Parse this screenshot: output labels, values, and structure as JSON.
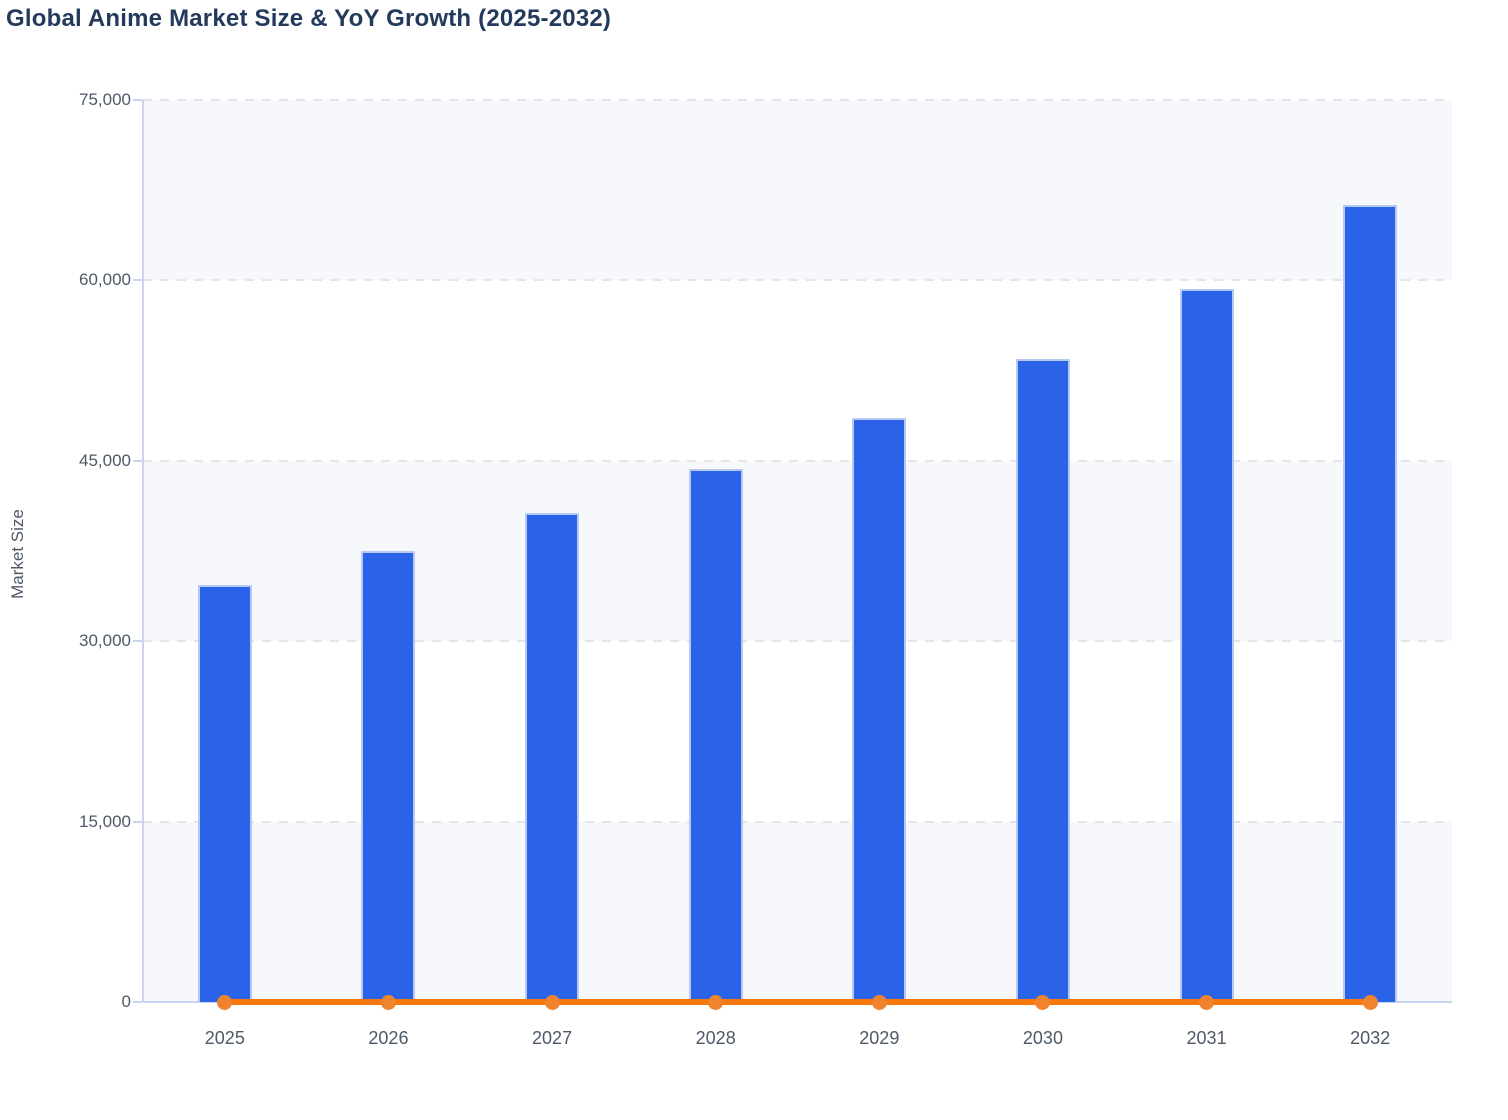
{
  "title": "Global Anime Market Size & YoY Growth (2025-2032)",
  "colors": {
    "title_text": "#243a5c",
    "tick_label": "#4e5968",
    "bar_fill": "#2a63e8",
    "bar_border": "#b7c8f3",
    "growth_line": "#f8780e",
    "growth_marker": "#f0832d",
    "axis_line": "#cad4f2",
    "gridline": "#e4e5ec",
    "band_shade": "#f7f8fc",
    "band_plain": "#ffffff"
  },
  "chart_data": {
    "type": "bar",
    "title": "Global Anime Market Size & YoY Growth (2025-2032)",
    "xlabel": "",
    "ylabel": "Market Size",
    "categories": [
      "2025",
      "2026",
      "2027",
      "2028",
      "2029",
      "2030",
      "2031",
      "2032"
    ],
    "series": [
      {
        "name": "Market Size",
        "type": "bar",
        "values": [
          34700,
          37500,
          40700,
          44300,
          48600,
          53500,
          59300,
          66300
        ]
      },
      {
        "name": "YoY Growth",
        "type": "line",
        "values": [
          0,
          0,
          0,
          0,
          0,
          0,
          0,
          0
        ]
      }
    ],
    "ylim": [
      0,
      75000
    ],
    "yticks": [
      0,
      15000,
      30000,
      45000,
      60000,
      75000
    ],
    "ytick_labels": [
      "0",
      "15,000",
      "30,000",
      "45,000",
      "60,000",
      "75,000"
    ],
    "grid": "horizontal-dashed",
    "background_bands": "alternating",
    "legend": "none"
  }
}
